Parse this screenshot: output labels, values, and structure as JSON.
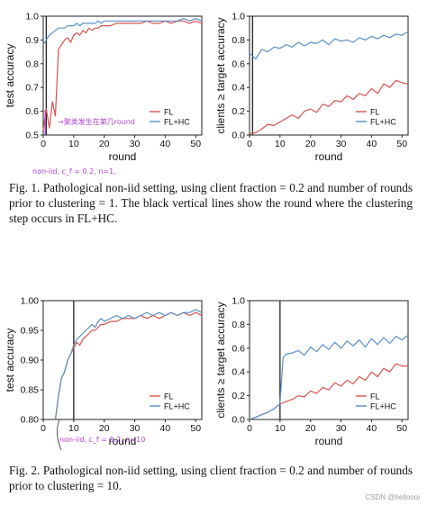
{
  "colors": {
    "fl": "#d9534f",
    "flhc": "#5b8fc9",
    "divider": "#222222",
    "annotation": "#b23fd0"
  },
  "figures": [
    {
      "caption": "Fig. 1.  Pathological non-iid setting, using client fraction = 0.2 and number of rounds prior to clustering = 1. The black vertical lines show the round where the clustering step occurs in FL+HC.",
      "handwritten_notes": [
        "→聚类发生在第几round",
        "non-iid, c_f = 0.2, n=1,"
      ],
      "charts": [
        {
          "type": "line",
          "xlabel": "round",
          "ylabel": "test accuracy",
          "xlim": [
            0,
            52
          ],
          "ylim": [
            0.5,
            1.0
          ],
          "xticks": [
            0,
            10,
            20,
            30,
            40,
            50
          ],
          "yticks": [
            0.5,
            0.6,
            0.7,
            0.8,
            0.9,
            1.0
          ],
          "ytick_labels": [
            "0.5",
            "0.6",
            "0.7",
            "0.8",
            "0.9",
            "1.0"
          ],
          "vline": 1,
          "legend": [
            "FL",
            "FL+HC"
          ],
          "legend_position": "bottom-right",
          "x": [
            0,
            1,
            2,
            3,
            4,
            5,
            6,
            7,
            8,
            9,
            10,
            11,
            12,
            13,
            14,
            15,
            16,
            17,
            18,
            19,
            20,
            22,
            24,
            26,
            28,
            30,
            32,
            34,
            36,
            38,
            40,
            42,
            44,
            46,
            48,
            50,
            52
          ],
          "series": [
            {
              "name": "FL",
              "values": [
                0.52,
                0.61,
                0.53,
                0.64,
                0.58,
                0.86,
                0.88,
                0.9,
                0.91,
                0.89,
                0.92,
                0.93,
                0.92,
                0.94,
                0.93,
                0.95,
                0.94,
                0.95,
                0.95,
                0.96,
                0.96,
                0.96,
                0.97,
                0.97,
                0.97,
                0.97,
                0.97,
                0.98,
                0.97,
                0.97,
                0.98,
                0.97,
                0.98,
                0.98,
                0.97,
                0.98,
                0.97
              ]
            },
            {
              "name": "FL+HC",
              "values": [
                0.88,
                0.9,
                0.92,
                0.93,
                0.94,
                0.95,
                0.95,
                0.95,
                0.96,
                0.96,
                0.96,
                0.97,
                0.96,
                0.97,
                0.97,
                0.97,
                0.97,
                0.97,
                0.98,
                0.97,
                0.98,
                0.98,
                0.98,
                0.98,
                0.98,
                0.98,
                0.98,
                0.98,
                0.98,
                0.98,
                0.98,
                0.98,
                0.98,
                0.99,
                0.98,
                0.99,
                0.98
              ]
            }
          ]
        },
        {
          "type": "line",
          "xlabel": "round",
          "ylabel": "clients ≥ target accuracy",
          "xlim": [
            0,
            52
          ],
          "ylim": [
            0,
            1.0
          ],
          "xticks": [
            0,
            10,
            20,
            30,
            40,
            50
          ],
          "yticks": [
            0,
            0.2,
            0.4,
            0.6,
            0.8,
            1.0
          ],
          "ytick_labels": [
            "0.0",
            "0.2",
            "0.4",
            "0.6",
            "0.8",
            "1.0"
          ],
          "vline": 1,
          "legend": [
            "FL",
            "FL+HC"
          ],
          "legend_position": "bottom-right",
          "x": [
            0,
            2,
            4,
            6,
            8,
            10,
            12,
            14,
            16,
            18,
            20,
            22,
            24,
            26,
            28,
            30,
            32,
            34,
            36,
            38,
            40,
            42,
            44,
            46,
            48,
            50,
            52
          ],
          "series": [
            {
              "name": "FL",
              "values": [
                0.01,
                0.02,
                0.05,
                0.09,
                0.08,
                0.11,
                0.14,
                0.17,
                0.14,
                0.2,
                0.22,
                0.19,
                0.26,
                0.24,
                0.29,
                0.28,
                0.33,
                0.3,
                0.35,
                0.33,
                0.39,
                0.35,
                0.43,
                0.4,
                0.46,
                0.44,
                0.43
              ]
            },
            {
              "name": "FL+HC",
              "values": [
                0.69,
                0.64,
                0.72,
                0.7,
                0.74,
                0.73,
                0.76,
                0.74,
                0.78,
                0.75,
                0.78,
                0.77,
                0.8,
                0.76,
                0.81,
                0.79,
                0.8,
                0.78,
                0.82,
                0.8,
                0.83,
                0.81,
                0.84,
                0.82,
                0.85,
                0.84,
                0.87
              ]
            }
          ]
        }
      ]
    },
    {
      "caption": "Fig. 2.  Pathological non-iid setting, using client fraction = 0.2 and number of rounds prior to clustering = 10.",
      "handwritten_notes": [
        "non-iid, c_f = 0.2, n=10"
      ],
      "charts": [
        {
          "type": "line",
          "xlabel": "round",
          "ylabel": "test accuracy",
          "xlim": [
            0,
            52
          ],
          "ylim": [
            0.8,
            1.0
          ],
          "xticks": [
            0,
            10,
            20,
            30,
            40,
            50
          ],
          "yticks": [
            0.8,
            0.85,
            0.9,
            0.95,
            1.0
          ],
          "ytick_labels": [
            "0.80",
            "0.85",
            "0.90",
            "0.95",
            "1.00"
          ],
          "vline": 10,
          "legend": [
            "FL",
            "FL+HC"
          ],
          "legend_position": "bottom-right",
          "x": [
            4,
            5,
            6,
            7,
            8,
            9,
            10,
            11,
            12,
            13,
            14,
            15,
            16,
            17,
            18,
            19,
            20,
            22,
            24,
            26,
            28,
            30,
            32,
            34,
            36,
            38,
            40,
            42,
            44,
            46,
            48,
            50,
            52
          ],
          "series": [
            {
              "name": "FL",
              "values": [
                0.8,
                0.84,
                0.87,
                0.88,
                0.9,
                0.91,
                0.92,
                0.93,
                0.925,
                0.935,
                0.94,
                0.945,
                0.95,
                0.95,
                0.955,
                0.96,
                0.96,
                0.965,
                0.965,
                0.97,
                0.97,
                0.97,
                0.975,
                0.97,
                0.975,
                0.97,
                0.975,
                0.98,
                0.975,
                0.98,
                0.975,
                0.98,
                0.975
              ]
            },
            {
              "name": "FL+HC",
              "values": [
                0.8,
                0.84,
                0.87,
                0.88,
                0.9,
                0.91,
                0.925,
                0.935,
                0.94,
                0.945,
                0.95,
                0.955,
                0.96,
                0.955,
                0.965,
                0.97,
                0.965,
                0.97,
                0.975,
                0.97,
                0.975,
                0.97,
                0.975,
                0.98,
                0.975,
                0.98,
                0.975,
                0.98,
                0.975,
                0.98,
                0.98,
                0.985,
                0.98
              ]
            }
          ]
        },
        {
          "type": "line",
          "xlabel": "round",
          "ylabel": "clients ≥ target accuracy",
          "xlim": [
            0,
            52
          ],
          "ylim": [
            0,
            1.0
          ],
          "xticks": [
            0,
            10,
            20,
            30,
            40,
            50
          ],
          "yticks": [
            0,
            0.2,
            0.4,
            0.6,
            0.8,
            1.0
          ],
          "ytick_labels": [
            "0.0",
            "0.2",
            "0.4",
            "0.6",
            "0.8",
            "1.0"
          ],
          "vline": 10,
          "legend": [
            "FL",
            "FL+HC"
          ],
          "legend_position": "bottom-right",
          "x": [
            0,
            2,
            4,
            6,
            8,
            10,
            11,
            12,
            14,
            16,
            18,
            20,
            22,
            24,
            26,
            28,
            30,
            32,
            34,
            36,
            38,
            40,
            42,
            44,
            46,
            48,
            50,
            52
          ],
          "series": [
            {
              "name": "FL",
              "values": [
                0.0,
                0.02,
                0.04,
                0.06,
                0.09,
                0.13,
                0.14,
                0.15,
                0.17,
                0.2,
                0.19,
                0.24,
                0.22,
                0.27,
                0.25,
                0.31,
                0.28,
                0.33,
                0.3,
                0.36,
                0.33,
                0.4,
                0.36,
                0.43,
                0.4,
                0.47,
                0.45,
                0.45
              ]
            },
            {
              "name": "FL+HC",
              "values": [
                0.0,
                0.02,
                0.04,
                0.06,
                0.09,
                0.13,
                0.52,
                0.55,
                0.56,
                0.58,
                0.54,
                0.61,
                0.57,
                0.63,
                0.59,
                0.65,
                0.6,
                0.66,
                0.62,
                0.67,
                0.61,
                0.68,
                0.63,
                0.69,
                0.64,
                0.7,
                0.67,
                0.71
              ]
            }
          ]
        }
      ]
    }
  ],
  "watermark": "CSDN @helloooi"
}
